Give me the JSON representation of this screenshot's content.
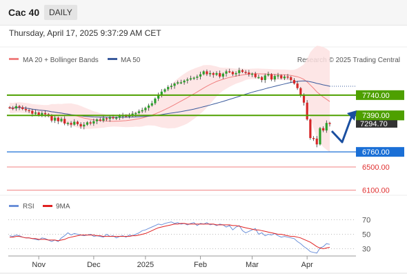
{
  "header": {
    "symbol": "Cac 40",
    "timeframe": "DAILY"
  },
  "datetime": "Thursday, April 17, 2025 9:37:29 AM CET",
  "legend": {
    "ma20": "MA 20 + Bollinger Bands",
    "ma50": "MA 50",
    "credit": "Research © 2025 Trading Central"
  },
  "rsi_legend": {
    "rsi": "RSI",
    "ma": "9MA"
  },
  "colors": {
    "ma20": "#f08080",
    "ma50": "#3a5a9c",
    "band_fill": "#fde2e2",
    "bull": "#2ca02c",
    "bear": "#d62728",
    "green_line": "#4ea000",
    "blue_level": "#1a6fd6",
    "red_level": "#f08080",
    "rsi": "#6a8fd8",
    "rsi_ma": "#e02020"
  },
  "chart_data": {
    "type": "candlestick",
    "x_ticks": [
      "Nov",
      "Dec",
      "2025",
      "Feb",
      "Mar",
      "Apr"
    ],
    "closes": [
      7520,
      7510,
      7550,
      7530,
      7500,
      7480,
      7470,
      7420,
      7440,
      7400,
      7430,
      7410,
      7380,
      7300,
      7350,
      7290,
      7330,
      7250,
      7260,
      7230,
      7280,
      7240,
      7200,
      7230,
      7270,
      7250,
      7290,
      7320,
      7300,
      7340,
      7330,
      7360,
      7340,
      7350,
      7380,
      7390,
      7370,
      7400,
      7420,
      7430,
      7460,
      7480,
      7520,
      7560,
      7600,
      7680,
      7750,
      7800,
      7840,
      7880,
      7900,
      7940,
      7960,
      7960,
      7990,
      8010,
      8030,
      8040,
      8060,
      8100,
      8150,
      8100,
      8120,
      8090,
      8120,
      8060,
      8110,
      8150,
      8140,
      8100,
      8120,
      8170,
      8140,
      8130,
      8100,
      8110,
      8050,
      8050,
      8000,
      8080,
      8100,
      8010,
      8070,
      8080,
      8030,
      8060,
      8050,
      8000,
      7940,
      7860,
      7740,
      7610,
      7320,
      7000,
      6990,
      6890,
      7170,
      7130,
      7260,
      7250
    ],
    "price_ylim": [
      6000,
      8500
    ],
    "last_price": "7294.70",
    "levels": [
      {
        "value": 7740.0,
        "label": "7740.00",
        "kind": "resistance"
      },
      {
        "value": 7390.0,
        "label": "7390.00",
        "kind": "pivot"
      },
      {
        "value": 6760.0,
        "label": "6760.00",
        "kind": "support"
      },
      {
        "value": 6500.0,
        "label": "6500.00",
        "kind": "support"
      },
      {
        "value": 6100.0,
        "label": "6100.00",
        "kind": "support"
      }
    ],
    "rsi": {
      "ticks": [
        "70",
        "50",
        "30"
      ],
      "ylim": [
        20,
        80
      ],
      "values": [
        48,
        47,
        49,
        48,
        46,
        45,
        45,
        44,
        43,
        42,
        45,
        44,
        42,
        40,
        42,
        40,
        45,
        48,
        52,
        49,
        51,
        50,
        49,
        48,
        49,
        50,
        47,
        48,
        47,
        46,
        50,
        47,
        48,
        45,
        47,
        48,
        46,
        49,
        48,
        50,
        52,
        55,
        56,
        58,
        60,
        62,
        64,
        63,
        65,
        66,
        67,
        65,
        66,
        64,
        65,
        63,
        65,
        66,
        62,
        65,
        64,
        66,
        63,
        64,
        62,
        64,
        63,
        60,
        62,
        56,
        60,
        62,
        55,
        52,
        54,
        56,
        58,
        50,
        52,
        48,
        50,
        49,
        51,
        48,
        46,
        47,
        46,
        45,
        44,
        40,
        37,
        33,
        30,
        26,
        25,
        24,
        31,
        33,
        37,
        36
      ],
      "ma_values": [
        46,
        46,
        47,
        47,
        46,
        45,
        45,
        44,
        44,
        43,
        43,
        43,
        42,
        42,
        42,
        41,
        42,
        43,
        45,
        46,
        47,
        48,
        49,
        49,
        49,
        49,
        49,
        48,
        48,
        47,
        47,
        47,
        47,
        47,
        47,
        47,
        47,
        47,
        48,
        48,
        49,
        50,
        51,
        53,
        55,
        57,
        59,
        60,
        61,
        62,
        63,
        64,
        64,
        65,
        65,
        64,
        64,
        64,
        64,
        64,
        64,
        64,
        64,
        64,
        63,
        63,
        63,
        63,
        63,
        62,
        62,
        61,
        60,
        59,
        58,
        57,
        56,
        56,
        55,
        54,
        53,
        52,
        51,
        50,
        50,
        49,
        48,
        47,
        47,
        46,
        45,
        43,
        41,
        39,
        36,
        33,
        31,
        30,
        31,
        32
      ]
    }
  },
  "arrow_hint": "up-arrow"
}
